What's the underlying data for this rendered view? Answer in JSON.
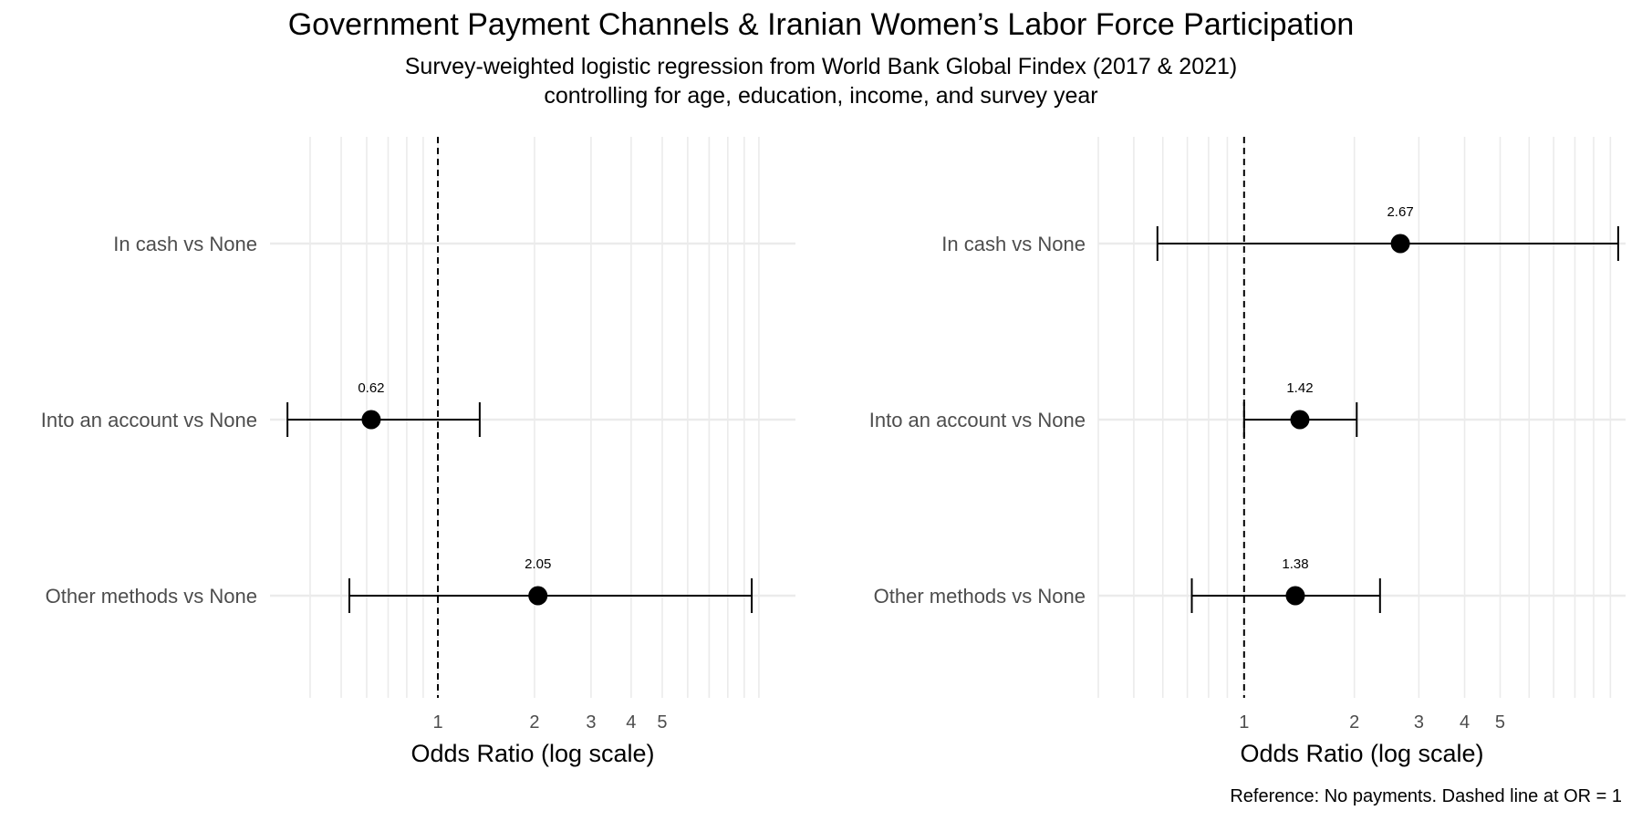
{
  "title": "Government Payment Channels & Iranian Women’s Labor Force Participation",
  "subtitle_line1": "Survey-weighted logistic regression from World Bank Global Findex (2017 & 2021)",
  "subtitle_line2": "controlling for age, education, income, and survey year",
  "caption": "Reference: No payments. Dashed line at OR = 1",
  "chart_data": [
    {
      "type": "scatter",
      "xlabel": "Odds Ratio (log scale)",
      "x_scale": "log",
      "xlim": [
        0.3,
        13
      ],
      "x_ticks": [
        1,
        2,
        3,
        4,
        5
      ],
      "reference_line": 1,
      "grid": true,
      "categories": [
        "In cash vs None",
        "Into an account vs None",
        "Other methods vs None"
      ],
      "points": [
        {
          "category": "In cash vs None",
          "or": null,
          "ci_low": null,
          "ci_high": null,
          "label": ""
        },
        {
          "category": "Into an account vs None",
          "or": 0.62,
          "ci_low": 0.34,
          "ci_high": 1.35,
          "label": "0.62"
        },
        {
          "category": "Other methods vs None",
          "or": 2.05,
          "ci_low": 0.53,
          "ci_high": 9.5,
          "label": "2.05"
        }
      ]
    },
    {
      "type": "scatter",
      "xlabel": "Odds Ratio (log scale)",
      "x_scale": "log",
      "xlim": [
        0.4,
        11
      ],
      "x_ticks": [
        1,
        2,
        3,
        4,
        5
      ],
      "reference_line": 1,
      "grid": true,
      "categories": [
        "In cash vs None",
        "Into an account vs None",
        "Other methods vs None"
      ],
      "points": [
        {
          "category": "In cash vs None",
          "or": 2.67,
          "ci_low": 0.58,
          "ci_high": 10.5,
          "label": "2.67"
        },
        {
          "category": "Into an account vs None",
          "or": 1.42,
          "ci_low": 1.0,
          "ci_high": 2.03,
          "label": "1.42"
        },
        {
          "category": "Other methods vs None",
          "or": 1.38,
          "ci_low": 0.72,
          "ci_high": 2.35,
          "label": "1.38"
        }
      ]
    }
  ]
}
